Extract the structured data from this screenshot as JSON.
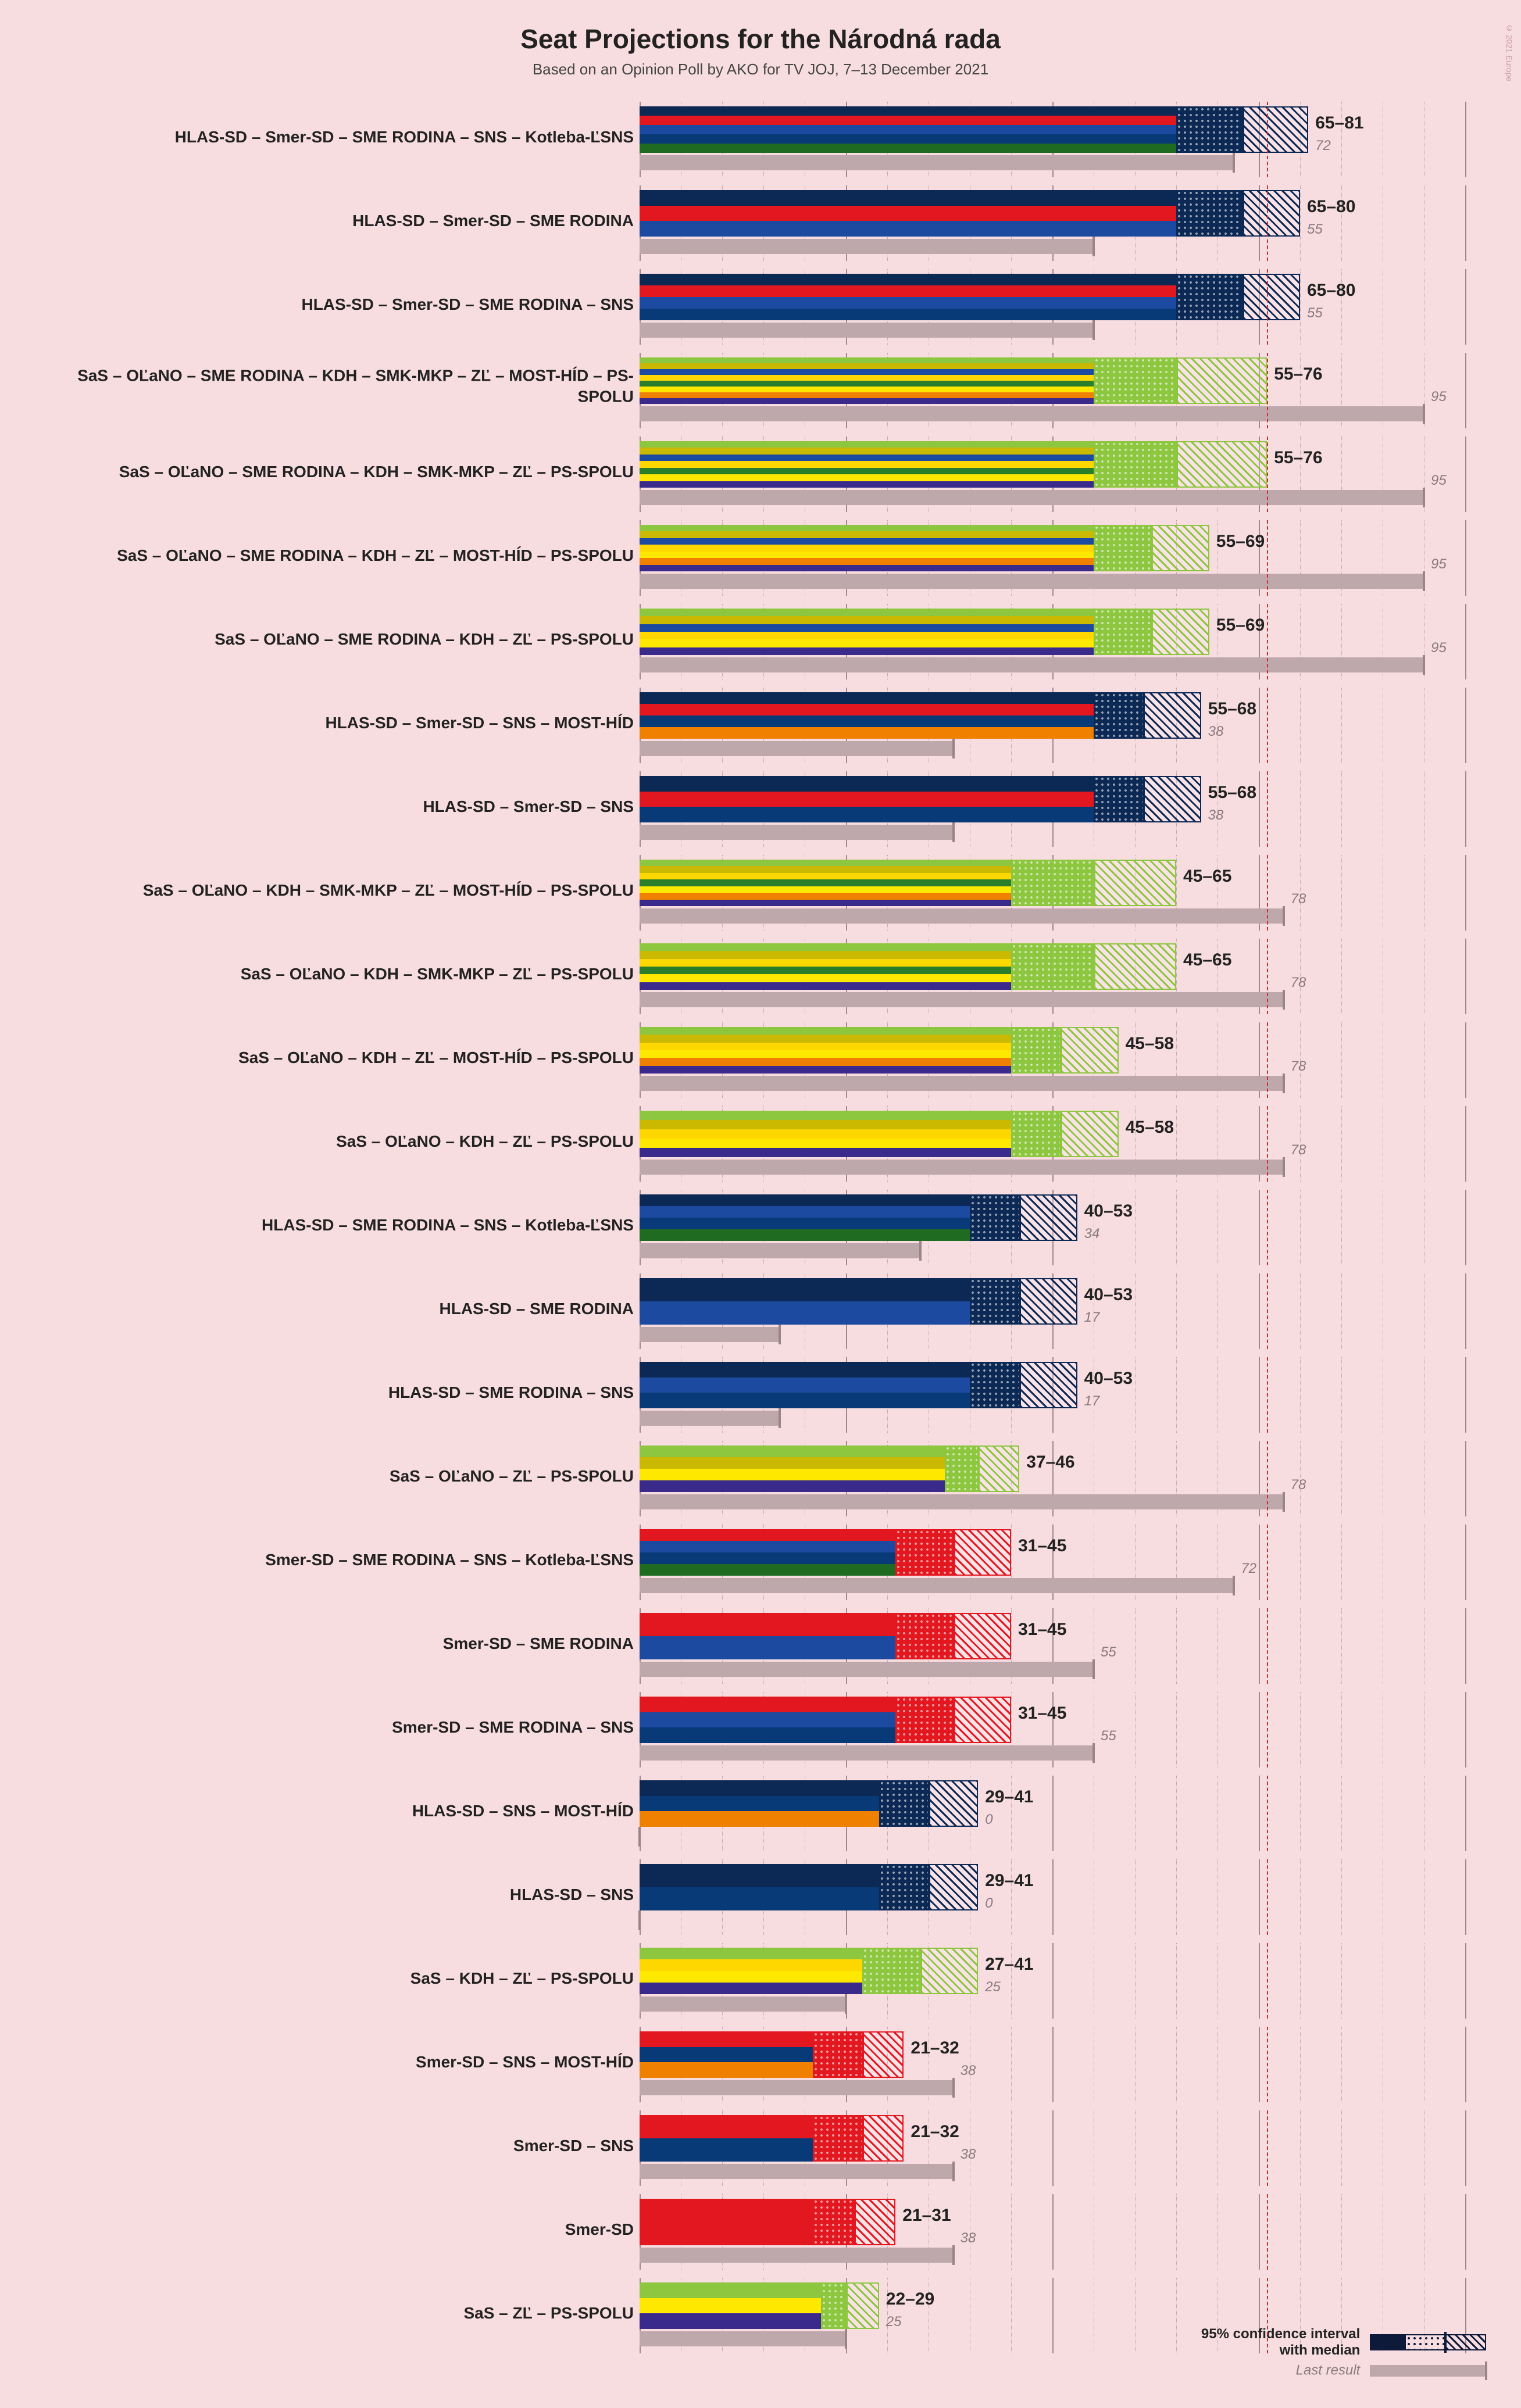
{
  "title": "Seat Projections for the Národná rada",
  "subtitle": "Based on an Opinion Poll by AKO for TV JOJ, 7–13 December 2021",
  "watermark": "© 2021 Europe",
  "axis": {
    "max": 100,
    "ticks": [
      0,
      5,
      10,
      15,
      20,
      25,
      30,
      35,
      40,
      45,
      50,
      55,
      60,
      65,
      70,
      75,
      80,
      85,
      90,
      95,
      100
    ],
    "majority": 76
  },
  "party_colors": {
    "HLAS-SD": "#0c2854",
    "Smer-SD": "#e31720",
    "SME RODINA": "#1c4aa0",
    "SNS": "#083a78",
    "Kotleba-LSNS": "#1f6b22",
    "SaS": "#8dc63f",
    "OLaNO": "#cbb800",
    "KDH": "#ffd700",
    "SMK-MKP": "#2a7d2a",
    "ZL": "#ffe800",
    "MOST-HID": "#f08000",
    "PS-SPOLU": "#3a2a8c"
  },
  "last_color": "#bfa8ac",
  "legend": {
    "ci": "95% confidence interval\nwith median",
    "last": "Last result"
  },
  "coalitions": [
    {
      "label": "HLAS-SD – Smer-SD – SME RODINA – SNS – Kotleba-ĽSNS",
      "parties": [
        "HLAS-SD",
        "Smer-SD",
        "SME RODINA",
        "SNS",
        "Kotleba-LSNS"
      ],
      "low": 65,
      "median": 73,
      "high": 81,
      "last": 72
    },
    {
      "label": "HLAS-SD – Smer-SD – SME RODINA",
      "parties": [
        "HLAS-SD",
        "Smer-SD",
        "SME RODINA"
      ],
      "low": 65,
      "median": 73,
      "high": 80,
      "last": 55
    },
    {
      "label": "HLAS-SD – Smer-SD – SME RODINA – SNS",
      "parties": [
        "HLAS-SD",
        "Smer-SD",
        "SME RODINA",
        "SNS"
      ],
      "low": 65,
      "median": 73,
      "high": 80,
      "last": 55
    },
    {
      "label": "SaS – OĽaNO – SME RODINA – KDH – SMK-MKP – ZĽ – MOST-HÍD – PS-SPOLU",
      "parties": [
        "SaS",
        "OLaNO",
        "SME RODINA",
        "KDH",
        "SMK-MKP",
        "ZL",
        "MOST-HID",
        "PS-SPOLU"
      ],
      "low": 55,
      "median": 65,
      "high": 76,
      "last": 95
    },
    {
      "label": "SaS – OĽaNO – SME RODINA – KDH – SMK-MKP – ZĽ – PS-SPOLU",
      "parties": [
        "SaS",
        "OLaNO",
        "SME RODINA",
        "KDH",
        "SMK-MKP",
        "ZL",
        "PS-SPOLU"
      ],
      "low": 55,
      "median": 65,
      "high": 76,
      "last": 95
    },
    {
      "label": "SaS – OĽaNO – SME RODINA – KDH – ZĽ – MOST-HÍD – PS-SPOLU",
      "parties": [
        "SaS",
        "OLaNO",
        "SME RODINA",
        "KDH",
        "ZL",
        "MOST-HID",
        "PS-SPOLU"
      ],
      "low": 55,
      "median": 62,
      "high": 69,
      "last": 95
    },
    {
      "label": "SaS – OĽaNO – SME RODINA – KDH – ZĽ – PS-SPOLU",
      "parties": [
        "SaS",
        "OLaNO",
        "SME RODINA",
        "KDH",
        "ZL",
        "PS-SPOLU"
      ],
      "low": 55,
      "median": 62,
      "high": 69,
      "last": 95
    },
    {
      "label": "HLAS-SD – Smer-SD – SNS – MOST-HÍD",
      "parties": [
        "HLAS-SD",
        "Smer-SD",
        "SNS",
        "MOST-HID"
      ],
      "low": 55,
      "median": 61,
      "high": 68,
      "last": 38
    },
    {
      "label": "HLAS-SD – Smer-SD – SNS",
      "parties": [
        "HLAS-SD",
        "Smer-SD",
        "SNS"
      ],
      "low": 55,
      "median": 61,
      "high": 68,
      "last": 38
    },
    {
      "label": "SaS – OĽaNO – KDH – SMK-MKP – ZĽ – MOST-HÍD – PS-SPOLU",
      "parties": [
        "SaS",
        "OLaNO",
        "KDH",
        "SMK-MKP",
        "ZL",
        "MOST-HID",
        "PS-SPOLU"
      ],
      "low": 45,
      "median": 55,
      "high": 65,
      "last": 78
    },
    {
      "label": "SaS – OĽaNO – KDH – SMK-MKP – ZĽ – PS-SPOLU",
      "parties": [
        "SaS",
        "OLaNO",
        "KDH",
        "SMK-MKP",
        "ZL",
        "PS-SPOLU"
      ],
      "low": 45,
      "median": 55,
      "high": 65,
      "last": 78
    },
    {
      "label": "SaS – OĽaNO – KDH – ZĽ – MOST-HÍD – PS-SPOLU",
      "parties": [
        "SaS",
        "OLaNO",
        "KDH",
        "ZL",
        "MOST-HID",
        "PS-SPOLU"
      ],
      "low": 45,
      "median": 51,
      "high": 58,
      "last": 78
    },
    {
      "label": "SaS – OĽaNO – KDH – ZĽ – PS-SPOLU",
      "parties": [
        "SaS",
        "OLaNO",
        "KDH",
        "ZL",
        "PS-SPOLU"
      ],
      "low": 45,
      "median": 51,
      "high": 58,
      "last": 78
    },
    {
      "label": "HLAS-SD – SME RODINA – SNS – Kotleba-ĽSNS",
      "parties": [
        "HLAS-SD",
        "SME RODINA",
        "SNS",
        "Kotleba-LSNS"
      ],
      "low": 40,
      "median": 46,
      "high": 53,
      "last": 34
    },
    {
      "label": "HLAS-SD – SME RODINA",
      "parties": [
        "HLAS-SD",
        "SME RODINA"
      ],
      "low": 40,
      "median": 46,
      "high": 53,
      "last": 17
    },
    {
      "label": "HLAS-SD – SME RODINA – SNS",
      "parties": [
        "HLAS-SD",
        "SME RODINA",
        "SNS"
      ],
      "low": 40,
      "median": 46,
      "high": 53,
      "last": 17
    },
    {
      "label": "SaS – OĽaNO – ZĽ – PS-SPOLU",
      "parties": [
        "SaS",
        "OLaNO",
        "ZL",
        "PS-SPOLU"
      ],
      "low": 37,
      "median": 41,
      "high": 46,
      "last": 78
    },
    {
      "label": "Smer-SD – SME RODINA – SNS – Kotleba-ĽSNS",
      "parties": [
        "Smer-SD",
        "SME RODINA",
        "SNS",
        "Kotleba-LSNS"
      ],
      "low": 31,
      "median": 38,
      "high": 45,
      "last": 72
    },
    {
      "label": "Smer-SD – SME RODINA",
      "parties": [
        "Smer-SD",
        "SME RODINA"
      ],
      "low": 31,
      "median": 38,
      "high": 45,
      "last": 55
    },
    {
      "label": "Smer-SD – SME RODINA – SNS",
      "parties": [
        "Smer-SD",
        "SME RODINA",
        "SNS"
      ],
      "low": 31,
      "median": 38,
      "high": 45,
      "last": 55
    },
    {
      "label": "HLAS-SD – SNS – MOST-HÍD",
      "parties": [
        "HLAS-SD",
        "SNS",
        "MOST-HID"
      ],
      "low": 29,
      "median": 35,
      "high": 41,
      "last": 0
    },
    {
      "label": "HLAS-SD – SNS",
      "parties": [
        "HLAS-SD",
        "SNS"
      ],
      "low": 29,
      "median": 35,
      "high": 41,
      "last": 0
    },
    {
      "label": "SaS – KDH – ZĽ – PS-SPOLU",
      "parties": [
        "SaS",
        "KDH",
        "ZL",
        "PS-SPOLU"
      ],
      "low": 27,
      "median": 34,
      "high": 41,
      "last": 25
    },
    {
      "label": "Smer-SD – SNS – MOST-HÍD",
      "parties": [
        "Smer-SD",
        "SNS",
        "MOST-HID"
      ],
      "low": 21,
      "median": 27,
      "high": 32,
      "last": 38
    },
    {
      "label": "Smer-SD – SNS",
      "parties": [
        "Smer-SD",
        "SNS"
      ],
      "low": 21,
      "median": 27,
      "high": 32,
      "last": 38
    },
    {
      "label": "Smer-SD",
      "parties": [
        "Smer-SD"
      ],
      "low": 21,
      "median": 26,
      "high": 31,
      "last": 38
    },
    {
      "label": "SaS – ZĽ – PS-SPOLU",
      "parties": [
        "SaS",
        "ZL",
        "PS-SPOLU"
      ],
      "low": 22,
      "median": 25,
      "high": 29,
      "last": 25
    }
  ]
}
